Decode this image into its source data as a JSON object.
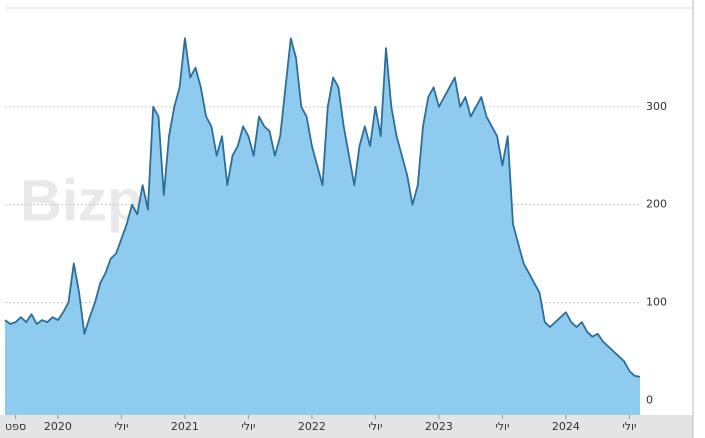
{
  "chart_data": {
    "type": "area",
    "watermark": "Bizportal",
    "series": [
      {
        "color": "#2b6e9b",
        "fill": "#8fcbee",
        "values": [
          82,
          78,
          80,
          85,
          80,
          88,
          78,
          82,
          80,
          85,
          82,
          90,
          100,
          140,
          110,
          68,
          85,
          100,
          120,
          130,
          145,
          150,
          165,
          180,
          200,
          190,
          220,
          195,
          300,
          290,
          210,
          270,
          300,
          320,
          370,
          330,
          340,
          320,
          290,
          280,
          250,
          270,
          220,
          250,
          260,
          280,
          270,
          250,
          290,
          280,
          275,
          250,
          270,
          320,
          370,
          350,
          300,
          290,
          260,
          240,
          220,
          300,
          330,
          320,
          280,
          250,
          220,
          260,
          280,
          260,
          300,
          270,
          360,
          300,
          270,
          250,
          230,
          200,
          220,
          280,
          310,
          320,
          300,
          310,
          320,
          330,
          300,
          310,
          290,
          300,
          310,
          290,
          280,
          270,
          240,
          270,
          180,
          160,
          140,
          130,
          120,
          110,
          80,
          75,
          80,
          85,
          90,
          80,
          75,
          80,
          70,
          65,
          68,
          60,
          55,
          50,
          45,
          40,
          30,
          25,
          24
        ]
      }
    ],
    "xlim": [
      0,
      120
    ],
    "xticks": [
      {
        "value": 2,
        "label": "ספט"
      },
      {
        "value": 10,
        "label": "2020"
      },
      {
        "value": 22,
        "label": "יולי"
      },
      {
        "value": 34,
        "label": "2021"
      },
      {
        "value": 46,
        "label": "יולי"
      },
      {
        "value": 58,
        "label": "2022"
      },
      {
        "value": 70,
        "label": "יולי"
      },
      {
        "value": 82,
        "label": "2023"
      },
      {
        "value": 94,
        "label": "יולי"
      },
      {
        "value": 106,
        "label": "2024"
      },
      {
        "value": 118,
        "label": "יולי"
      }
    ],
    "ylim": [
      -15,
      400
    ],
    "yticks": [
      0,
      100,
      200,
      300
    ],
    "grid": true
  }
}
